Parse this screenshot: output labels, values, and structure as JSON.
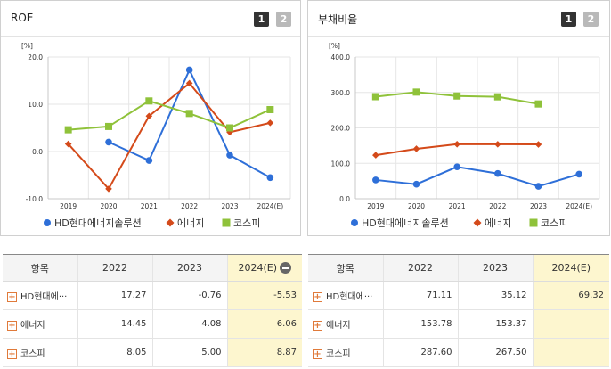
{
  "left_panel": {
    "title": "ROE",
    "pages": [
      "1",
      "2"
    ]
  },
  "right_panel": {
    "title": "부채비율",
    "pages": [
      "1",
      "2"
    ]
  },
  "colors": {
    "HD현대에너지솔루션": "#2e6fd8",
    "에너지": "#d44a1a",
    "코스피": "#8fc23a"
  },
  "chart_data": [
    {
      "type": "line",
      "title": "ROE",
      "ylabel": "[%]",
      "categories": [
        "2019",
        "2020",
        "2021",
        "2022",
        "2023",
        "2024(E)"
      ],
      "ylim": [
        -10,
        20
      ],
      "yticks": [
        "20.0",
        "10.0",
        "0.0",
        "-10.0"
      ],
      "grid": true,
      "legend": "bottom",
      "series": [
        {
          "name": "HD현대에너지솔루션",
          "marker": "circle",
          "values": [
            null,
            2.0,
            -1.9,
            17.27,
            -0.76,
            -5.53
          ]
        },
        {
          "name": "에너지",
          "marker": "diamond",
          "values": [
            1.6,
            -7.9,
            7.5,
            14.45,
            4.08,
            6.06
          ]
        },
        {
          "name": "코스피",
          "marker": "square",
          "values": [
            4.6,
            5.3,
            10.7,
            8.05,
            5.0,
            8.87
          ]
        }
      ]
    },
    {
      "type": "line",
      "title": "부채비율",
      "ylabel": "[%]",
      "categories": [
        "2019",
        "2020",
        "2021",
        "2022",
        "2023",
        "2024(E)"
      ],
      "ylim": [
        0,
        400
      ],
      "yticks": [
        "400.0",
        "300.0",
        "200.0",
        "100.0",
        "0.0"
      ],
      "grid": true,
      "legend": "bottom",
      "series": [
        {
          "name": "HD현대에너지솔루션",
          "marker": "circle",
          "values": [
            53,
            41,
            90,
            71.11,
            35.12,
            69.32
          ]
        },
        {
          "name": "에너지",
          "marker": "diamond",
          "values": [
            123,
            141,
            154,
            153.78,
            153.37,
            null
          ]
        },
        {
          "name": "코스피",
          "marker": "square",
          "values": [
            288,
            301,
            290,
            287.6,
            267.5,
            null
          ]
        }
      ]
    }
  ],
  "tables": {
    "left": {
      "headers": [
        "항목",
        "2022",
        "2023",
        "2024(E)"
      ],
      "rows": [
        {
          "name": "HD현대에···",
          "values": [
            "17.27",
            "-0.76",
            "-5.53"
          ]
        },
        {
          "name": "에너지",
          "values": [
            "14.45",
            "4.08",
            "6.06"
          ]
        },
        {
          "name": "코스피",
          "values": [
            "8.05",
            "5.00",
            "8.87"
          ]
        }
      ]
    },
    "right": {
      "headers": [
        "항목",
        "2022",
        "2023",
        "2024(E)"
      ],
      "rows": [
        {
          "name": "HD현대에···",
          "values": [
            "71.11",
            "35.12",
            "69.32"
          ]
        },
        {
          "name": "에너지",
          "values": [
            "153.78",
            "153.37",
            ""
          ]
        },
        {
          "name": "코스피",
          "values": [
            "287.60",
            "267.50",
            ""
          ]
        }
      ]
    }
  }
}
